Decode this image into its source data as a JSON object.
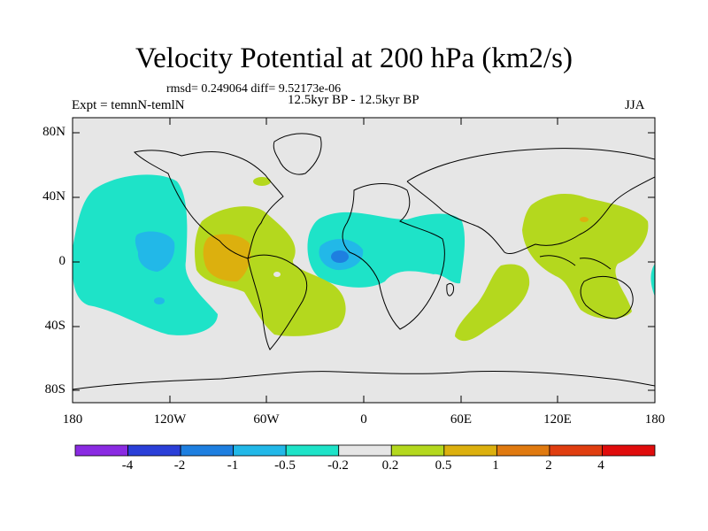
{
  "title": "Velocity Potential at 200 hPa (km2/s)",
  "stats_line": "rmsd= 0.249064 diff= 9.52173e-06",
  "left_label": "Expt = temnN-temlN",
  "period_label": "12.5kyr BP - 12.5kyr BP",
  "season_label": "JJA",
  "y_ticks": [
    "80N",
    "40N",
    "0",
    "40S",
    "80S"
  ],
  "x_ticks": [
    "180",
    "120W",
    "60W",
    "0",
    "60E",
    "120E",
    "180"
  ],
  "colorbar": {
    "colors": [
      "#8a2be2",
      "#2b3fd8",
      "#1e7fe0",
      "#22b8e8",
      "#1ee3c8",
      "#e6e6e6",
      "#b4d81e",
      "#dcb00e",
      "#e07a10",
      "#e03e10",
      "#e00c0c"
    ],
    "labels": [
      "-4",
      "-2",
      "-1",
      "-0.5",
      "-0.2",
      "0.2",
      "0.5",
      "1",
      "2",
      "4"
    ]
  },
  "colors": {
    "background": "#e6e6e6",
    "neg_weak": "#1ee3c8",
    "neg_mid": "#22b8e8",
    "neg_strong": "#1e7fe0",
    "pos_weak": "#b4d81e",
    "pos_mid": "#dcb00e"
  }
}
